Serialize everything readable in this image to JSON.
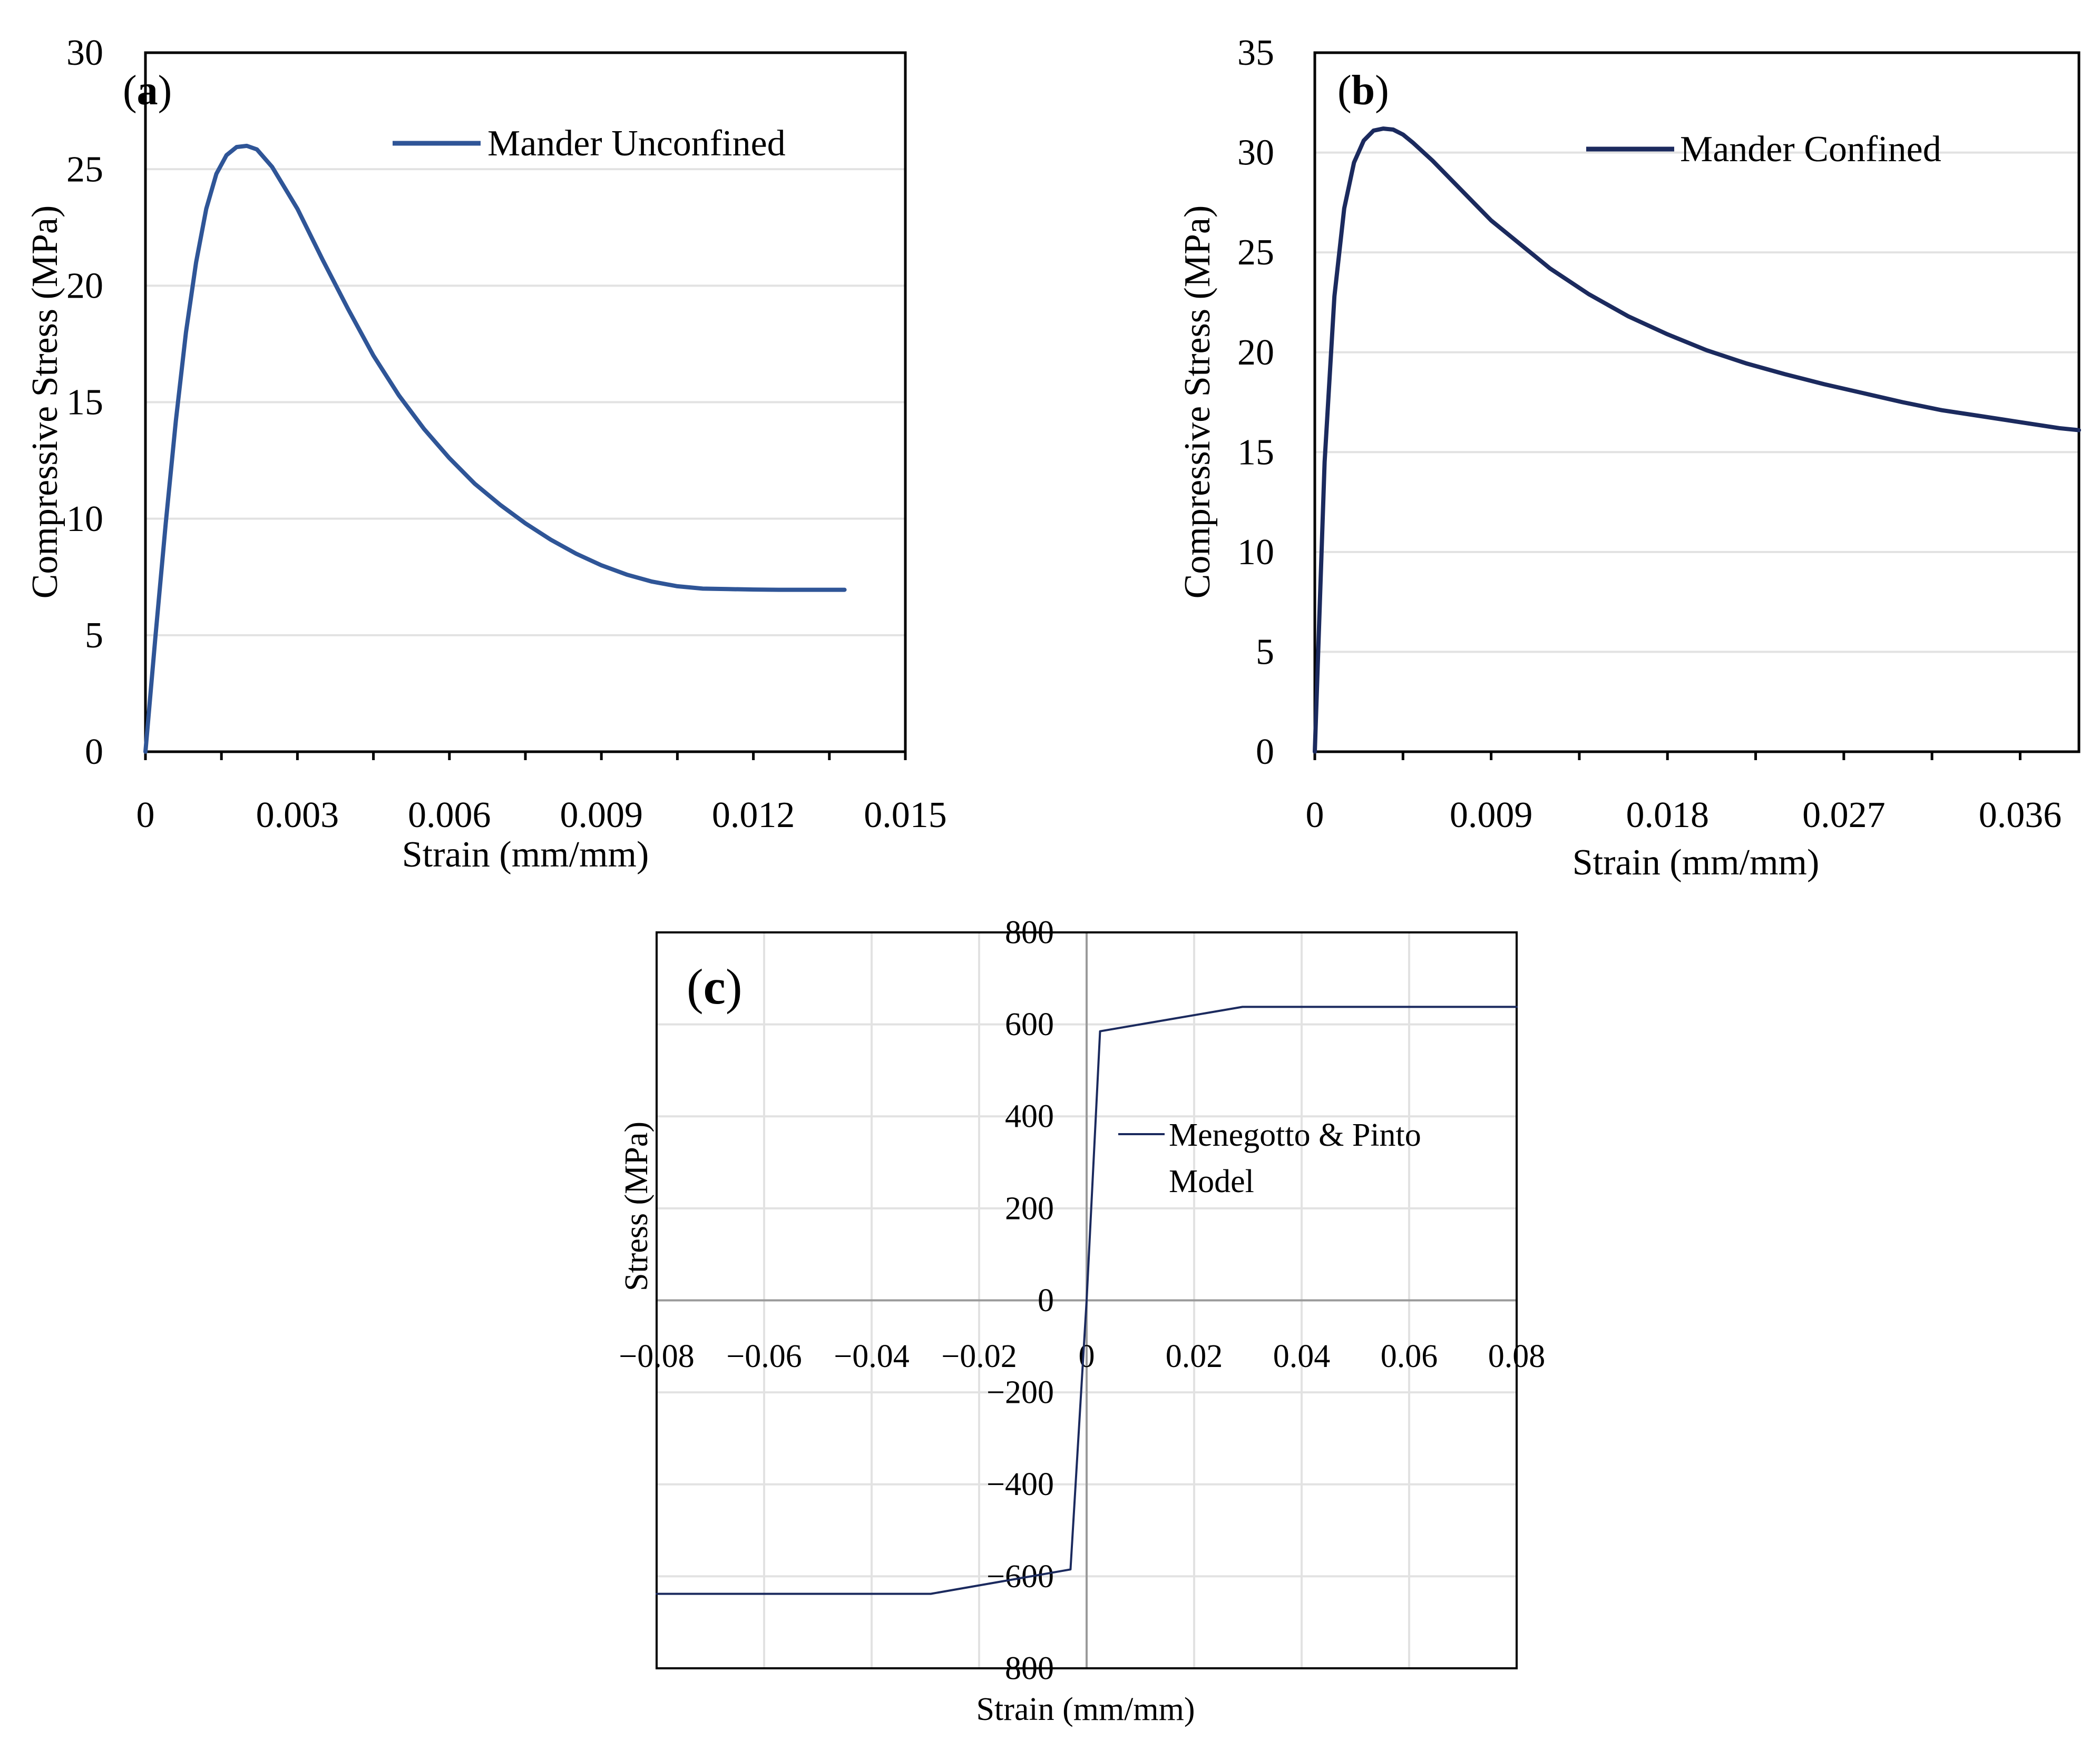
{
  "chart_data": [
    {
      "id": "a",
      "type": "line",
      "panel_label_open": "(",
      "panel_label": "a",
      "panel_label_close": ")",
      "xlabel": "Strain (mm/mm)",
      "ylabel": "Compressive Stress (MPa)",
      "xlim": [
        0,
        0.015
      ],
      "ylim": [
        0,
        30
      ],
      "xticks": [
        0,
        0.003,
        0.006,
        0.009,
        0.012,
        0.015
      ],
      "xtick_labels": [
        "0",
        "0.003",
        "0.006",
        "0.009",
        "0.012",
        "0.015"
      ],
      "yticks": [
        0,
        5,
        10,
        15,
        20,
        25,
        30
      ],
      "ytick_labels": [
        "0",
        "5",
        "10",
        "15",
        "20",
        "25",
        "30"
      ],
      "grid": true,
      "legend_position": "top-right",
      "series": [
        {
          "name": "Mander Unconfined",
          "color": "#2f5597",
          "x": [
            0,
            0.0002,
            0.0004,
            0.0006,
            0.0008,
            0.001,
            0.0012,
            0.0014,
            0.0016,
            0.0018,
            0.002,
            0.0022,
            0.0025,
            0.003,
            0.0035,
            0.004,
            0.0045,
            0.005,
            0.0055,
            0.006,
            0.0065,
            0.007,
            0.0075,
            0.008,
            0.0085,
            0.009,
            0.0095,
            0.01,
            0.0105,
            0.011,
            0.0115,
            0.012,
            0.0125,
            0.013,
            0.0135,
            0.0138
          ],
          "y": [
            0,
            5.0,
            9.8,
            14.2,
            18.0,
            21.0,
            23.3,
            24.8,
            25.6,
            25.95,
            26.0,
            25.85,
            25.1,
            23.3,
            21.1,
            19.0,
            17.0,
            15.3,
            13.85,
            12.6,
            11.5,
            10.6,
            9.8,
            9.1,
            8.5,
            8.0,
            7.6,
            7.3,
            7.1,
            7.0,
            6.98,
            6.96,
            6.95,
            6.95,
            6.95,
            6.95
          ]
        }
      ]
    },
    {
      "id": "b",
      "type": "line",
      "panel_label_open": "(",
      "panel_label": "b",
      "panel_label_close": ")",
      "xlabel": "Strain (mm/mm)",
      "ylabel": "Compressive Stress (MPa)",
      "xlim": [
        0,
        0.039
      ],
      "ylim": [
        0,
        35
      ],
      "xticks": [
        0,
        0.009,
        0.018,
        0.027,
        0.036
      ],
      "xtick_labels": [
        "0",
        "0.009",
        "0.018",
        "0.027",
        "0.036"
      ],
      "yticks": [
        0,
        5,
        10,
        15,
        20,
        25,
        30,
        35
      ],
      "ytick_labels": [
        "0",
        "5",
        "10",
        "15",
        "20",
        "25",
        "30",
        "35"
      ],
      "grid": true,
      "legend_position": "top-right",
      "series": [
        {
          "name": "Mander Confined",
          "color": "#1b2a5e",
          "x": [
            0,
            0.0005,
            0.001,
            0.0015,
            0.002,
            0.0025,
            0.003,
            0.0035,
            0.004,
            0.0045,
            0.005,
            0.006,
            0.007,
            0.008,
            0.009,
            0.01,
            0.012,
            0.014,
            0.016,
            0.018,
            0.02,
            0.022,
            0.024,
            0.026,
            0.028,
            0.03,
            0.032,
            0.034,
            0.036,
            0.038,
            0.039
          ],
          "y": [
            0,
            14.5,
            22.8,
            27.2,
            29.5,
            30.6,
            31.1,
            31.2,
            31.15,
            30.9,
            30.5,
            29.6,
            28.6,
            27.6,
            26.6,
            25.8,
            24.2,
            22.9,
            21.8,
            20.9,
            20.1,
            19.45,
            18.9,
            18.4,
            17.95,
            17.5,
            17.1,
            16.8,
            16.5,
            16.2,
            16.1
          ]
        }
      ]
    },
    {
      "id": "c",
      "type": "line",
      "panel_label_open": "(",
      "panel_label": "c",
      "panel_label_close": ")",
      "xlabel": "Strain (mm/mm)",
      "ylabel": "Stress (MPa)",
      "xlim": [
        -0.08,
        0.08
      ],
      "ylim": [
        -800,
        800
      ],
      "xticks": [
        -0.08,
        -0.06,
        -0.04,
        -0.02,
        0,
        0.02,
        0.04,
        0.06,
        0.08
      ],
      "xtick_labels": [
        "−0.08",
        "−0.06",
        "−0.04",
        "−0.02",
        "0",
        "0.02",
        "0.04",
        "0.06",
        "0.08"
      ],
      "yticks": [
        -800,
        -600,
        -400,
        -200,
        0,
        200,
        400,
        600,
        800
      ],
      "ytick_labels": [
        "−800",
        "−600",
        "−400",
        "−200",
        "0",
        "200",
        "400",
        "600",
        "800"
      ],
      "grid": true,
      "legend_position": "center",
      "series": [
        {
          "name_line1": "Menegotto & Pinto",
          "name_line2": "Model",
          "color": "#1b2a5e",
          "x": [
            -0.08,
            -0.029,
            -0.003,
            0.0,
            0.0025,
            0.029,
            0.08
          ],
          "y": [
            -638,
            -638,
            -585,
            0,
            585,
            638,
            638
          ]
        }
      ]
    }
  ]
}
